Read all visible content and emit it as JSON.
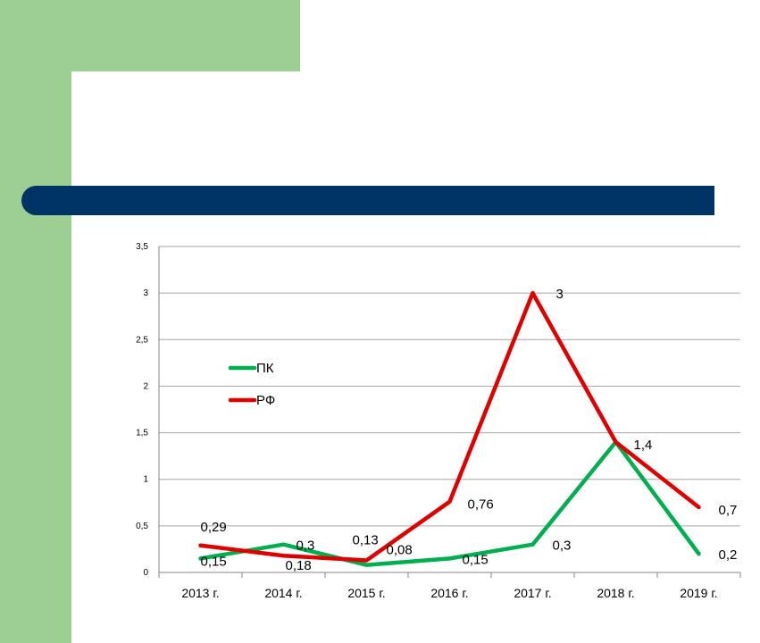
{
  "colors": {
    "background_green": "#9dcf95",
    "title_bar": "#003366",
    "series_pk": "#00b050",
    "series_rf": "#e00000",
    "grid": "#a6a6a6"
  },
  "chart_data": {
    "type": "line",
    "categories": [
      "2013 г.",
      "2014 г.",
      "2015 г.",
      "2016 г.",
      "2017 г.",
      "2018 г.",
      "2019 г."
    ],
    "series": [
      {
        "name": "ПК",
        "color": "#00b050",
        "values": [
          0.15,
          0.3,
          0.08,
          0.15,
          0.3,
          1.4,
          0.2
        ],
        "labels": [
          "0,15",
          "0,3",
          "0,08",
          "0,15",
          "0,3",
          "1,4",
          "0,2"
        ]
      },
      {
        "name": "РФ",
        "color": "#e00000",
        "values": [
          0.29,
          0.18,
          0.13,
          0.76,
          3,
          1.4,
          0.7
        ],
        "labels": [
          "0,29",
          "0,18",
          "0,13",
          "0,76",
          "3",
          "",
          "0,7"
        ]
      }
    ],
    "yticks": [
      "0",
      "0,5",
      "1",
      "1,5",
      "2",
      "2,5",
      "3",
      "3,5"
    ],
    "ylim": [
      0,
      3.5
    ],
    "grid": true,
    "legend_position": "upper-left inside plot",
    "title": "",
    "xlabel": "",
    "ylabel": ""
  }
}
